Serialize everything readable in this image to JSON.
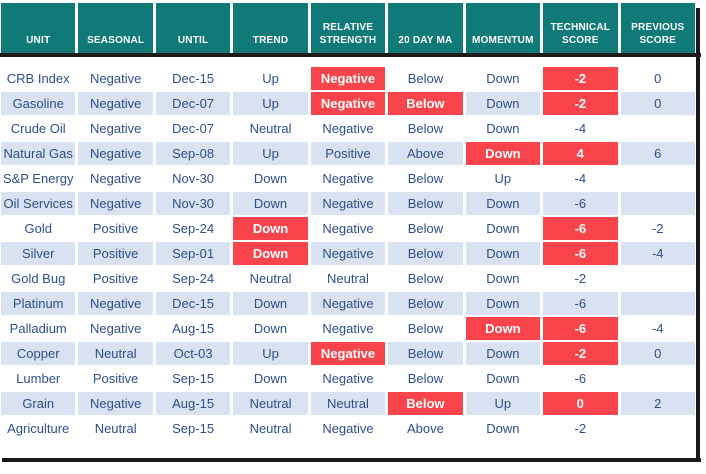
{
  "chart_data": {
    "type": "table",
    "columns": [
      "UNIT",
      "SEASONAL",
      "UNTIL",
      "TREND",
      "RELATIVE STRENGTH",
      "20 DAY MA",
      "MOMENTUM",
      "TECHNICAL SCORE",
      "PREVIOUS SCORE"
    ],
    "rows": [
      [
        "CRB Index",
        "Negative",
        "Dec-15",
        "Up",
        "Negative",
        "Below",
        "Down",
        "-2",
        "0"
      ],
      [
        "Gasoline",
        "Negative",
        "Dec-07",
        "Up",
        "Negative",
        "Below",
        "Down",
        "-2",
        "0"
      ],
      [
        "Crude Oil",
        "Negative",
        "Dec-07",
        "Neutral",
        "Negative",
        "Below",
        "Down",
        "-4",
        ""
      ],
      [
        "Natural Gas",
        "Negative",
        "Sep-08",
        "Up",
        "Positive",
        "Above",
        "Down",
        "4",
        "6"
      ],
      [
        "S&P Energy",
        "Negative",
        "Nov-30",
        "Down",
        "Negative",
        "Below",
        "Up",
        "-4",
        ""
      ],
      [
        "Oil Services",
        "Negative",
        "Nov-30",
        "Down",
        "Negative",
        "Below",
        "Down",
        "-6",
        ""
      ],
      [
        "Gold",
        "Positive",
        "Sep-24",
        "Down",
        "Negative",
        "Below",
        "Down",
        "-6",
        "-2"
      ],
      [
        "Silver",
        "Positive",
        "Sep-01",
        "Down",
        "Negative",
        "Below",
        "Down",
        "-6",
        "-4"
      ],
      [
        "Gold Bug",
        "Positive",
        "Sep-24",
        "Neutral",
        "Neutral",
        "Below",
        "Down",
        "-2",
        ""
      ],
      [
        "Platinum",
        "Negative",
        "Dec-15",
        "Down",
        "Negative",
        "Below",
        "Down",
        "-6",
        ""
      ],
      [
        "Palladium",
        "Negative",
        "Aug-15",
        "Down",
        "Negative",
        "Below",
        "Down",
        "-6",
        "-4"
      ],
      [
        "Copper",
        "Neutral",
        "Oct-03",
        "Up",
        "Negative",
        "Below",
        "Down",
        "-2",
        "0"
      ],
      [
        "Lumber",
        "Positive",
        "Sep-15",
        "Down",
        "Negative",
        "Below",
        "Down",
        "-6",
        ""
      ],
      [
        "Grain",
        "Negative",
        "Aug-15",
        "Neutral",
        "Neutral",
        "Below",
        "Up",
        "0",
        "2"
      ],
      [
        "Agriculture",
        "Neutral",
        "Sep-15",
        "Neutral",
        "Negative",
        "Above",
        "Down",
        "-2",
        ""
      ]
    ],
    "red_cells": [
      [
        0,
        4
      ],
      [
        0,
        7
      ],
      [
        1,
        4
      ],
      [
        1,
        5
      ],
      [
        1,
        7
      ],
      [
        3,
        6
      ],
      [
        3,
        7
      ],
      [
        6,
        3
      ],
      [
        6,
        7
      ],
      [
        7,
        3
      ],
      [
        7,
        7
      ],
      [
        10,
        6
      ],
      [
        10,
        7
      ],
      [
        11,
        4
      ],
      [
        11,
        7
      ],
      [
        13,
        5
      ],
      [
        13,
        7
      ]
    ],
    "title": "",
    "grid": "off",
    "legend": "none"
  },
  "colors": {
    "header_bg": "#0F7A78",
    "red": "#F8444A",
    "stripe": "#D9E2F0",
    "text": "#2E4E8E",
    "border": "#1A1A1A",
    "white_row": "#FFFFFF"
  }
}
